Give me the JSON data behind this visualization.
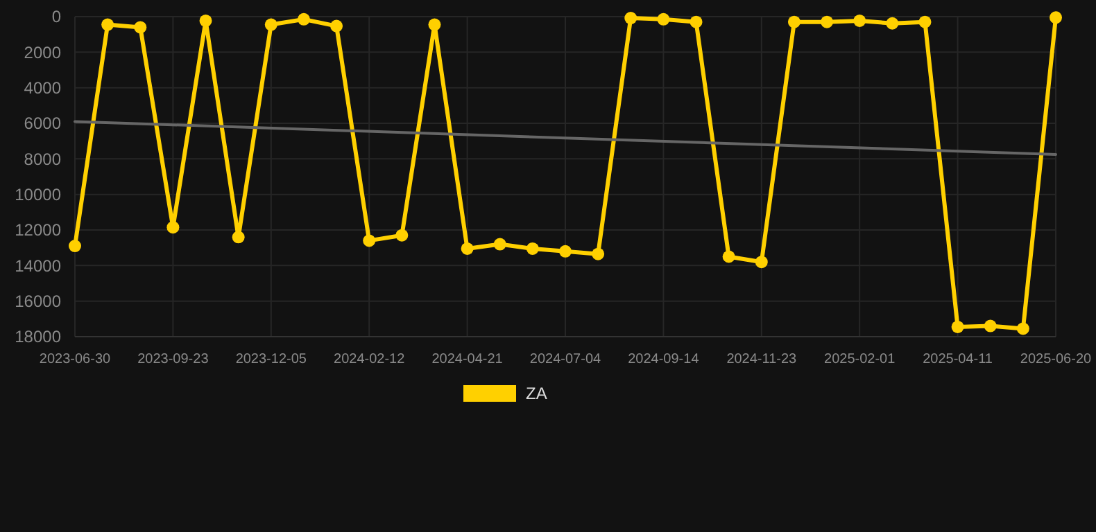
{
  "chart_data": {
    "type": "line",
    "categories": [
      "2023-06-30",
      null,
      null,
      "2023-09-23",
      null,
      null,
      "2023-12-05",
      null,
      null,
      "2024-02-12",
      null,
      null,
      "2024-04-21",
      null,
      null,
      "2024-07-04",
      null,
      null,
      "2024-09-14",
      null,
      null,
      "2024-11-23",
      null,
      null,
      "2025-02-01",
      null,
      null,
      "2025-04-11",
      null,
      null,
      "2025-06-20"
    ],
    "series": [
      {
        "name": "ZA",
        "color": "#ffd000",
        "marker": "circle",
        "values": [
          12900,
          450,
          600,
          11850,
          230,
          12400,
          450,
          150,
          530,
          12600,
          12300,
          450,
          13050,
          12800,
          13050,
          13200,
          13350,
          80,
          150,
          300,
          13500,
          13800,
          300,
          300,
          230,
          380,
          300,
          17450,
          17400,
          17550,
          50
        ]
      },
      {
        "color": "#666666",
        "marker": "none",
        "values": [
          5900,
          null,
          null,
          null,
          null,
          null,
          null,
          null,
          null,
          null,
          null,
          null,
          null,
          null,
          null,
          null,
          null,
          null,
          null,
          null,
          null,
          null,
          null,
          null,
          null,
          null,
          null,
          null,
          null,
          null,
          7750
        ]
      }
    ],
    "ylim": [
      18000,
      0
    ],
    "yticks": [
      0,
      2000,
      4000,
      6000,
      8000,
      10000,
      12000,
      14000,
      16000,
      18000
    ],
    "grid": true,
    "legend": "bottom"
  }
}
